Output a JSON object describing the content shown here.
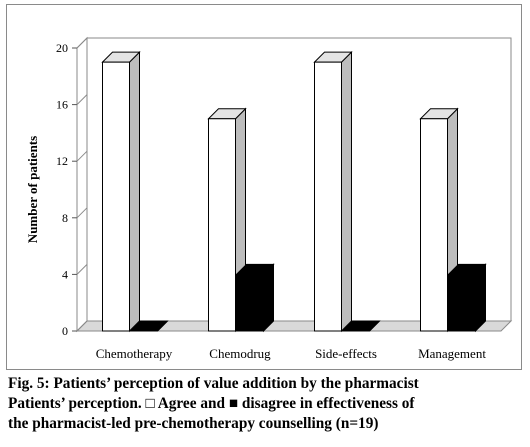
{
  "chart_data": {
    "type": "bar",
    "style": "3d-clustered",
    "categories": [
      "Chemotherapy",
      "Chemodrug",
      "Side-effects",
      "Management"
    ],
    "series": [
      {
        "name": "Agree",
        "values": [
          19,
          15,
          19,
          15
        ],
        "color": "#ffffff"
      },
      {
        "name": "disagree",
        "values": [
          0,
          4,
          0,
          4
        ],
        "color": "#000000"
      }
    ],
    "yticks": [
      0,
      4,
      8,
      12,
      16,
      20
    ],
    "ylim": [
      0,
      20
    ],
    "ylabel": "Number of patients",
    "xlabel": "",
    "grid": false,
    "legend": "none",
    "colors": {
      "frame": "#8a8a8a",
      "wall": "#ffffff",
      "side_shade": "#bdbdbd",
      "top_shade": "#e4e4e4",
      "floor": "#d9d9d9"
    }
  },
  "caption": {
    "line1": "Fig. 5: Patients’ perception of value addition by the pharmacist",
    "line2": "Patients’ perception. □ Agree and ■ disagree in effectiveness of",
    "line3": "the pharmacist-led pre-chemotherapy counselling (n=19)"
  }
}
